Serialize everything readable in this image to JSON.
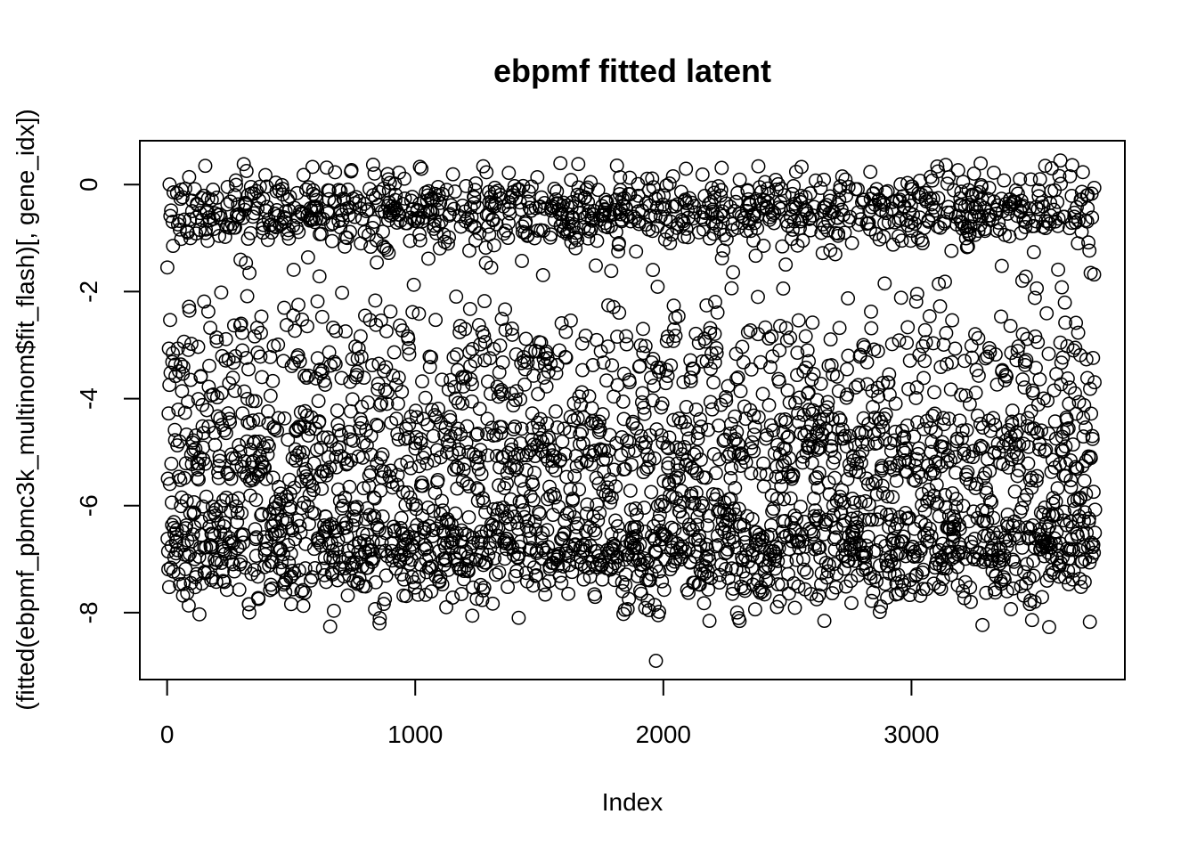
{
  "chart_data": {
    "type": "scatter",
    "title": "ebpmf fitted latent",
    "xlabel": "Index",
    "ylabel": "(fitted(ebpmf_pbmc3k_multinom$fit_flash)[, gene_idx])",
    "xlim": [
      -110,
      3860
    ],
    "ylim": [
      -9.25,
      0.82
    ],
    "xticks": [
      0,
      1000,
      2000,
      3000
    ],
    "yticks": [
      0,
      -2,
      -4,
      -6,
      -8
    ],
    "xtick_labels": [
      "0",
      "1000",
      "2000",
      "3000"
    ],
    "ytick_labels": [
      "0",
      "-2",
      "-4",
      "-6",
      "-8"
    ],
    "grid": false,
    "legend": "none",
    "marker": "open-circle",
    "n_points": 3740,
    "notable_points": [
      {
        "x": 1970,
        "y": -8.9
      },
      {
        "x": 3555,
        "y": -8.27
      },
      {
        "x": 3600,
        "y": 0.45
      },
      {
        "x": 1585,
        "y": 0.4
      },
      {
        "x": 830,
        "y": 0.37
      }
    ],
    "distribution": {
      "bands": [
        {
          "y_center": -0.5,
          "spread": 0.38,
          "share": 0.27
        },
        {
          "y_center": -3.3,
          "spread": 0.75,
          "share": 0.14
        },
        {
          "y_center": -5.0,
          "spread": 0.55,
          "share": 0.22
        },
        {
          "y_center": -6.8,
          "spread": 0.55,
          "share": 0.37
        }
      ],
      "y_range": [
        -8.3,
        0.4
      ]
    }
  }
}
